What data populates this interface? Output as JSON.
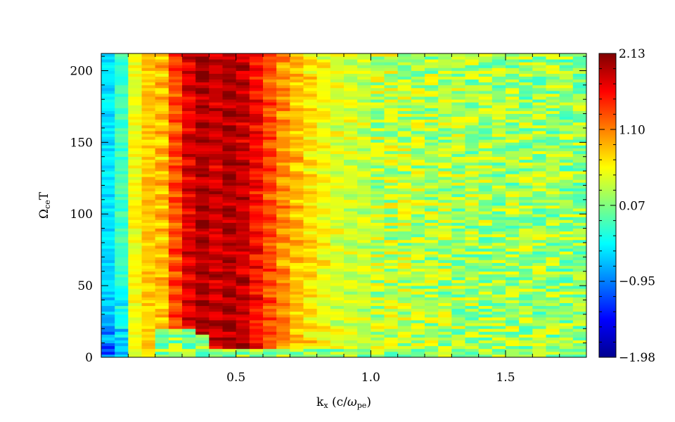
{
  "chart_data": {
    "type": "heatmap",
    "title": "",
    "xlabel": "k_x (c/ω_pe)",
    "xlabel_parts": {
      "main": "k",
      "sub": "x",
      "unit_open": " (c/",
      "unit_symbol": "ω",
      "unit_sub": "pe",
      "unit_close": ")"
    },
    "ylabel": "Ω_ce T",
    "ylabel_parts": {
      "main": "Ω",
      "sub": "ce",
      "rest": "T"
    },
    "xlim": [
      0.0,
      1.8
    ],
    "ylim": [
      0,
      212
    ],
    "x_ticks": [
      {
        "value": 0.5,
        "label": "0.5"
      },
      {
        "value": 1.0,
        "label": "1.0"
      },
      {
        "value": 1.5,
        "label": "1.5"
      }
    ],
    "y_ticks": [
      {
        "value": 0,
        "label": "0"
      },
      {
        "value": 50,
        "label": "50"
      },
      {
        "value": 100,
        "label": "100"
      },
      {
        "value": 150,
        "label": "150"
      },
      {
        "value": 200,
        "label": "200"
      }
    ],
    "colorbar": {
      "colormap": "jet",
      "range": [
        -1.98,
        2.13
      ],
      "ticks": [
        {
          "value": 2.13,
          "label": "2.13"
        },
        {
          "value": 1.1,
          "label": "1.10"
        },
        {
          "value": 0.07,
          "label": "0.07"
        },
        {
          "value": -0.95,
          "label": "−0.95"
        },
        {
          "value": -1.98,
          "label": "−1.98"
        }
      ]
    },
    "k_columns": [
      0.025,
      0.075,
      0.125,
      0.175,
      0.225,
      0.275,
      0.325,
      0.375,
      0.425,
      0.475,
      0.525,
      0.575,
      0.625,
      0.675,
      0.725,
      0.775,
      0.825,
      0.875,
      0.925,
      0.975,
      1.025,
      1.075,
      1.125,
      1.175,
      1.225,
      1.275,
      1.325,
      1.375,
      1.425,
      1.475,
      1.525,
      1.575,
      1.625,
      1.675,
      1.725,
      1.775
    ],
    "column_mean_values": [
      -0.55,
      -0.2,
      0.55,
      0.8,
      0.85,
      1.3,
      1.75,
      1.95,
      1.8,
      1.95,
      1.85,
      1.6,
      1.3,
      1.05,
      0.85,
      0.7,
      0.55,
      0.45,
      0.4,
      0.35,
      0.3,
      0.3,
      0.28,
      0.26,
      0.25,
      0.24,
      0.23,
      0.22,
      0.21,
      0.2,
      0.2,
      0.19,
      0.18,
      0.18,
      0.17,
      0.17
    ],
    "growth_onset_OmegaT": [
      0,
      0,
      0,
      0,
      20,
      20,
      20,
      15,
      5,
      5,
      5,
      5,
      5,
      5,
      5,
      5,
      5,
      5,
      5,
      5,
      5,
      5,
      5,
      5,
      5,
      5,
      5,
      5,
      5,
      5,
      5,
      5,
      5,
      5,
      5,
      5
    ],
    "early_value": 0.15
  }
}
